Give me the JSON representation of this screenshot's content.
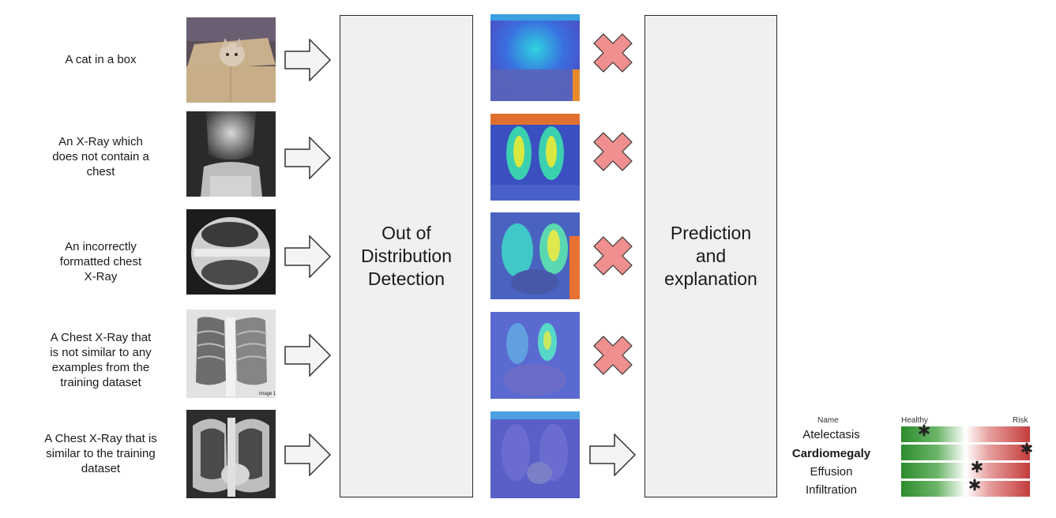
{
  "inputs": [
    {
      "label": "A cat in a box",
      "image": "cat-in-box-photo",
      "heatmap": "cat-heatmap",
      "outcome": "rejected"
    },
    {
      "label": "An X-Ray which\ndoes not contain a\nchest",
      "image": "knee-xray",
      "heatmap": "knee-heatmap",
      "outcome": "rejected"
    },
    {
      "label": "An incorrectly\nformatted chest\nX-Ray",
      "image": "rotated-chest-xray",
      "heatmap": "rotated-heatmap",
      "outcome": "rejected"
    },
    {
      "label": "A Chest X-Ray that\nis not similar to any\nexamples from the\ntraining dataset",
      "image": "dissimilar-chest-xray",
      "heatmap": "dissimilar-heatmap",
      "outcome": "rejected"
    },
    {
      "label": "A Chest X-Ray that is\nsimilar to the training\ndataset",
      "image": "similar-chest-xray",
      "heatmap": "similar-heatmap",
      "outcome": "accepted"
    }
  ],
  "ood_box": {
    "text": "Out of\nDistribution\nDetection"
  },
  "prediction_box": {
    "text": "Prediction\nand\nexplanation"
  },
  "risk_chart": {
    "header_name": "Name",
    "header_healthy": "Healthy",
    "header_risk": "Risk",
    "rows": [
      {
        "name": "Atelectasis",
        "risk": 0.18,
        "bold": false
      },
      {
        "name": "Cardiomegaly",
        "risk": 0.98,
        "bold": true
      },
      {
        "name": "Effusion",
        "risk": 0.59,
        "bold": false
      },
      {
        "name": "Infiltration",
        "risk": 0.57,
        "bold": false
      }
    ]
  },
  "colors": {
    "cross": "#ef8f8f",
    "cross_outline": "#333333",
    "box_fill": "#f0f0f0",
    "healthy": "#2c8c2c",
    "risk": "#c43c3c"
  }
}
